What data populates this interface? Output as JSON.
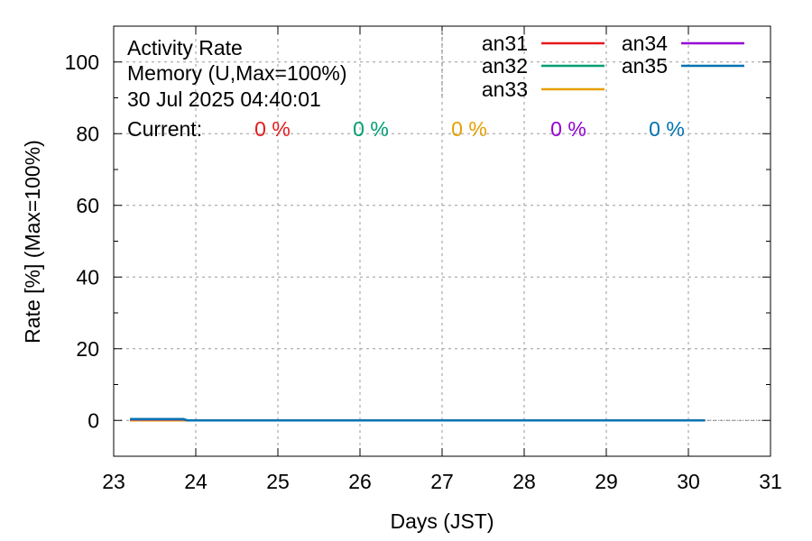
{
  "chart_data": {
    "type": "line",
    "title_lines": [
      "Activity Rate",
      "Memory (U,Max=100%)",
      "30 Jul 2025 04:40:01"
    ],
    "current_label": "Current:",
    "xlabel": "Days (JST)",
    "ylabel": "Rate [%]  (Max=100%)",
    "xlim": [
      23,
      31
    ],
    "ylim": [
      -10,
      110
    ],
    "x_ticks": [
      23,
      24,
      25,
      26,
      27,
      28,
      29,
      30,
      31
    ],
    "y_ticks": [
      0,
      20,
      40,
      60,
      80,
      100
    ],
    "grid": true,
    "legend_position": "top-right",
    "series": [
      {
        "name": "an31",
        "color": "#e41a1c",
        "current": "0 %",
        "points": [
          [
            23.2,
            0.0
          ],
          [
            30.2,
            0.0
          ]
        ]
      },
      {
        "name": "an32",
        "color": "#009e73",
        "current": "0 %",
        "points": [
          [
            23.2,
            0.0
          ],
          [
            30.2,
            0.0
          ]
        ]
      },
      {
        "name": "an33",
        "color": "#e69f00",
        "current": "0 %",
        "points": [
          [
            23.2,
            0.0
          ],
          [
            30.2,
            0.0
          ]
        ]
      },
      {
        "name": "an34",
        "color": "#9400d3",
        "current": "0 %",
        "points": [
          [
            23.2,
            0.3
          ],
          [
            23.85,
            0.3
          ],
          [
            23.9,
            0.0
          ],
          [
            30.2,
            0.0
          ]
        ]
      },
      {
        "name": "an35",
        "color": "#0072b2",
        "current": "0 %",
        "points": [
          [
            23.2,
            0.4
          ],
          [
            23.85,
            0.4
          ],
          [
            23.9,
            0.0
          ],
          [
            30.2,
            0.0
          ]
        ]
      }
    ]
  }
}
